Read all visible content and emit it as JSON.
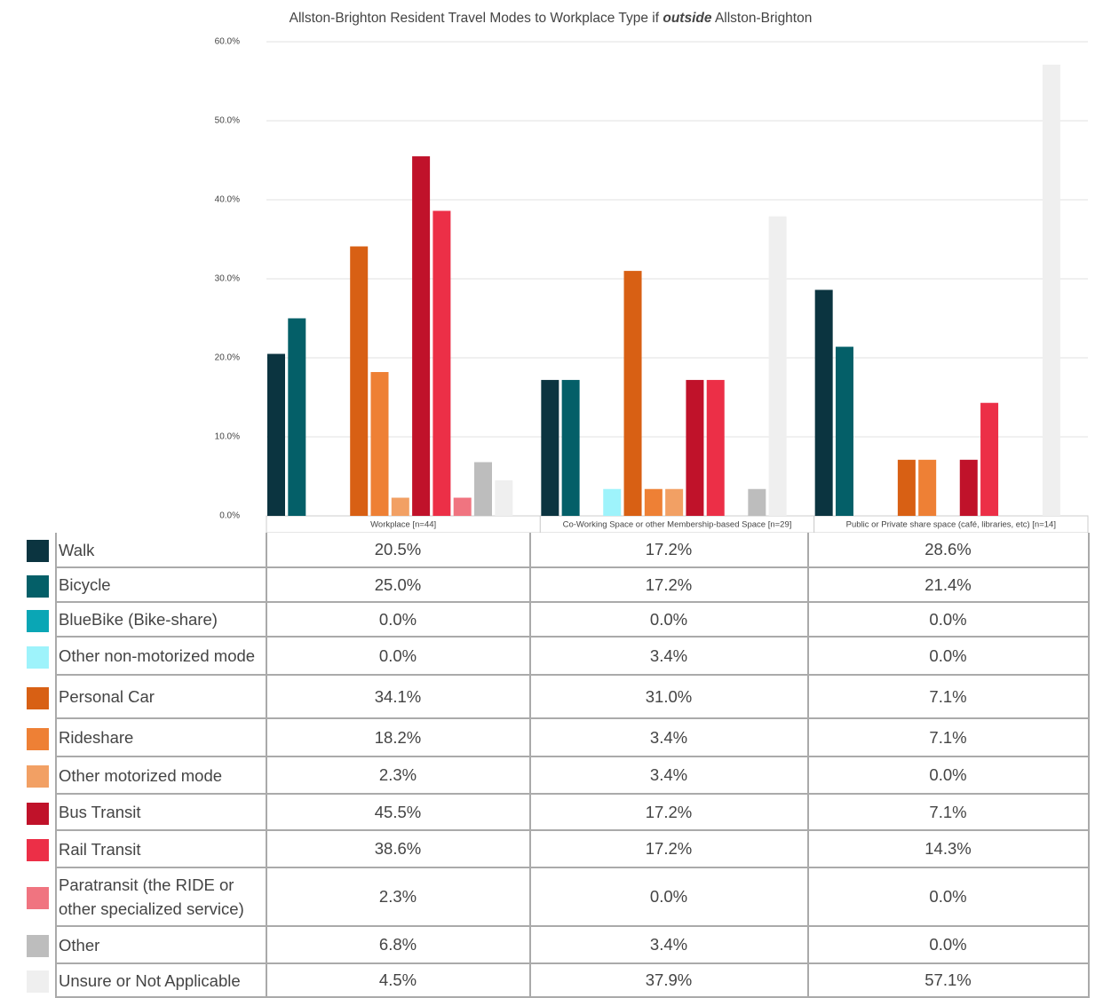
{
  "chart_data": {
    "type": "bar",
    "title": [
      "Allston-Brighton Resident Travel Modes to Workplace Type if",
      "outside",
      "Allston-Brighton"
    ],
    "categories": [
      "Workplace [n=44]",
      "Co-Working Space or other Membership-based Space [n=29]",
      "Public or Private share space (café, libraries, etc) [n=14]"
    ],
    "ylim": [
      0,
      60
    ],
    "yticks": [
      {
        "value": 0,
        "label": "0.0%"
      },
      {
        "value": 10,
        "label": "10.0%"
      },
      {
        "value": 20,
        "label": "20.0%"
      },
      {
        "value": 30,
        "label": "30.0%"
      },
      {
        "value": 40,
        "label": "40.0%"
      },
      {
        "value": 50,
        "label": "50.0%"
      },
      {
        "value": 60,
        "label": "60.0%"
      }
    ],
    "grid": true,
    "series": [
      {
        "name": "Walk",
        "color": "#0b3440",
        "values": [
          20.5,
          17.2,
          28.6
        ],
        "value_labels": [
          "20.5%",
          "17.2%",
          "28.6%"
        ]
      },
      {
        "name": "Bicycle",
        "color": "#045f68",
        "values": [
          25.0,
          17.2,
          21.4
        ],
        "value_labels": [
          "25.0%",
          "17.2%",
          "21.4%"
        ]
      },
      {
        "name": "BlueBike (Bike-share)",
        "color": "#0aa6b5",
        "values": [
          0.0,
          0.0,
          0.0
        ],
        "value_labels": [
          "0.0%",
          "0.0%",
          "0.0%"
        ]
      },
      {
        "name": "Other non-motorized mode",
        "color": "#9ef3fb",
        "values": [
          0.0,
          3.4,
          0.0
        ],
        "value_labels": [
          "0.0%",
          "3.4%",
          "0.0%"
        ]
      },
      {
        "name": "Personal Car",
        "color": "#d86014",
        "values": [
          34.1,
          31.0,
          7.1
        ],
        "value_labels": [
          "34.1%",
          "31.0%",
          "7.1%"
        ]
      },
      {
        "name": "Rideshare",
        "color": "#ee8035",
        "values": [
          18.2,
          3.4,
          7.1
        ],
        "value_labels": [
          "18.2%",
          "3.4%",
          "7.1%"
        ]
      },
      {
        "name": "Other motorized mode",
        "color": "#f2a064",
        "values": [
          2.3,
          3.4,
          0.0
        ],
        "value_labels": [
          "2.3%",
          "3.4%",
          "0.0%"
        ]
      },
      {
        "name": "Bus Transit",
        "color": "#c0122a",
        "values": [
          45.5,
          17.2,
          7.1
        ],
        "value_labels": [
          "45.5%",
          "17.2%",
          "7.1%"
        ]
      },
      {
        "name": "Rail Transit",
        "color": "#ec2f47",
        "values": [
          38.6,
          17.2,
          14.3
        ],
        "value_labels": [
          "38.6%",
          "17.2%",
          "14.3%"
        ]
      },
      {
        "name": "Paratransit (the RIDE or other specialized service)",
        "color": "#f07480",
        "values": [
          2.3,
          0.0,
          0.0
        ],
        "value_labels": [
          "2.3%",
          "0.0%",
          "0.0%"
        ]
      },
      {
        "name": "Other",
        "color": "#bdbdbd",
        "values": [
          6.8,
          3.4,
          0.0
        ],
        "value_labels": [
          "6.8%",
          "3.4%",
          "0.0%"
        ]
      },
      {
        "name": "Unsure or Not Applicable",
        "color": "#efefef",
        "values": [
          4.5,
          37.9,
          57.1
        ],
        "value_labels": [
          "4.5%",
          "37.9%",
          "57.1%"
        ]
      }
    ]
  }
}
